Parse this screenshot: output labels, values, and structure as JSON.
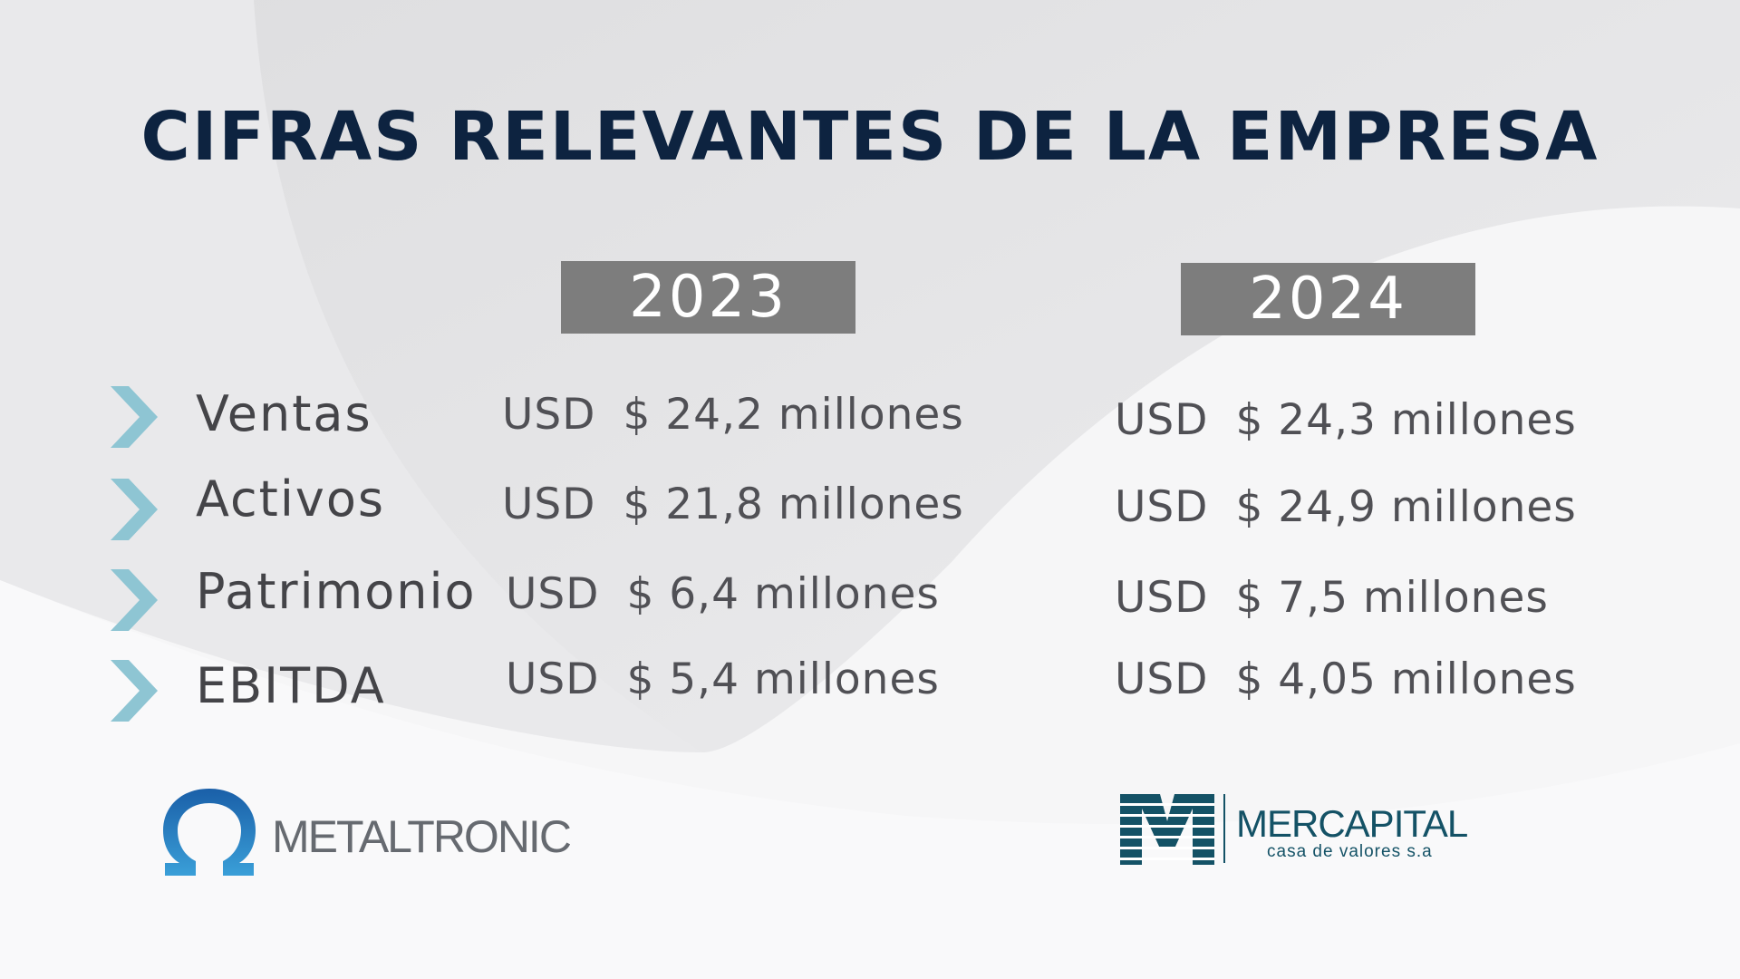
{
  "title": "CIFRAS RELEVANTES DE LA EMPRESA",
  "years": [
    "2023",
    "2024"
  ],
  "rows": [
    {
      "label": "Ventas",
      "v2023": "$ 24,2 millones",
      "v2024": "$ 24,3 millones"
    },
    {
      "label": "Activos",
      "v2023": "$ 21,8 millones",
      "v2024": "$ 24,9 millones"
    },
    {
      "label": "Patrimonio",
      "v2023": "$ 6,4 millones",
      "v2024": "$ 7,5 millones"
    },
    {
      "label": "EBITDA",
      "v2023": "$ 5,4 millones",
      "v2024": "$ 4,05 millones"
    }
  ],
  "currency": "USD",
  "logos": {
    "left": {
      "name": "METALTRONIC"
    },
    "right": {
      "name": "MERCAPITAL",
      "tagline": "casa de valores s.a"
    }
  },
  "colors": {
    "title": "#0d2340",
    "year_box": "#7d7d7d",
    "chevron": "#8ec5d3",
    "metaltronic_blue": "#1f6fb3",
    "mercapital_teal": "#145266"
  },
  "icons": {
    "bullet": "chevron-right-icon",
    "left_logo": "omega-icon",
    "right_logo": "m-mark-icon"
  }
}
